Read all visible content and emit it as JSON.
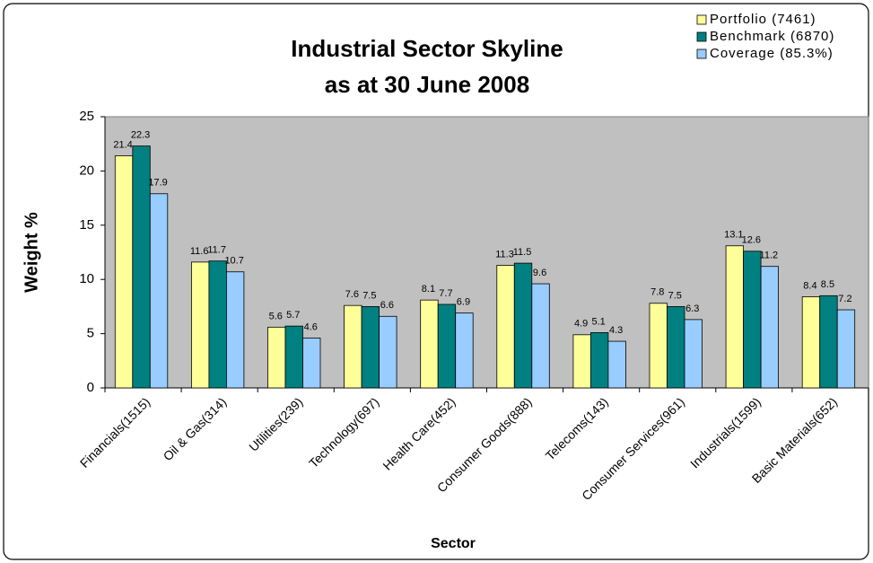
{
  "chart_data": {
    "type": "bar",
    "title": "Industrial Sector Skyline",
    "subtitle": "as at 30 June 2008",
    "x_label": "Sector",
    "y_label": "Weight %",
    "categories": [
      "Financials(1515)",
      "Oil & Gas(314)",
      "Utilities(239)",
      "Technology(697)",
      "Health Care(452)",
      "Consumer Goods(888)",
      "Telecoms(143)",
      "Consumer Services(961)",
      "Industrials(1599)",
      "Basic Materials(652)"
    ],
    "series": [
      {
        "name": "Portfolio (7461)",
        "color": "#ffff99",
        "values": [
          21.4,
          11.6,
          5.6,
          7.6,
          8.1,
          11.3,
          4.9,
          7.8,
          13.1,
          8.4
        ]
      },
      {
        "name": "Benchmark (6870)",
        "color": "#008080",
        "values": [
          22.3,
          11.7,
          5.7,
          7.5,
          7.7,
          11.5,
          5.1,
          7.5,
          12.6,
          8.5
        ]
      },
      {
        "name": "Coverage (85.3%)",
        "color": "#99ccff",
        "values": [
          17.9,
          10.7,
          4.6,
          6.6,
          6.9,
          9.6,
          4.3,
          6.3,
          11.2,
          7.2
        ]
      }
    ],
    "ylim": [
      0,
      25
    ],
    "yticks": [
      0,
      5,
      10,
      15,
      20,
      25
    ],
    "legend": "top-right",
    "plot_background": "#c0c0c0"
  }
}
